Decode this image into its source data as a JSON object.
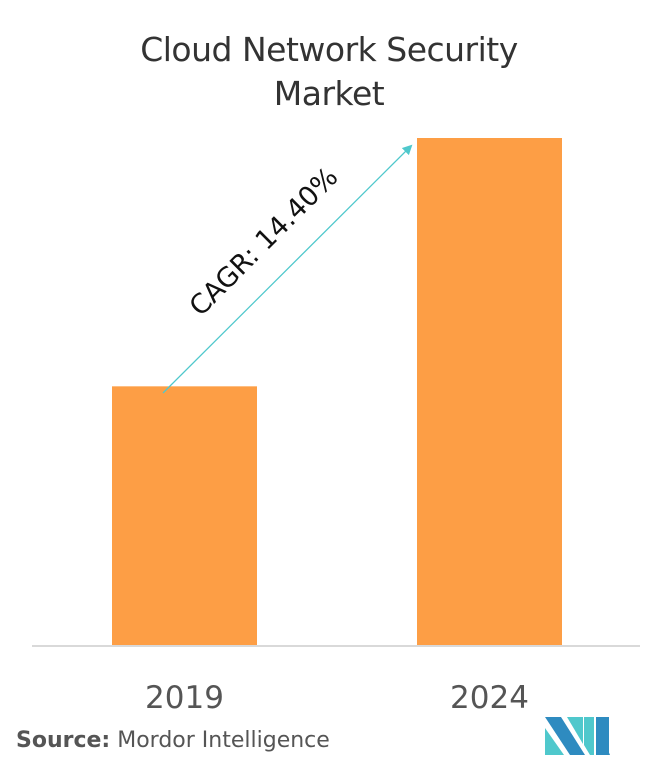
{
  "chart_data": {
    "type": "bar",
    "title": "Cloud Network Security Market",
    "title_lines": [
      "Cloud Network Security",
      "Market"
    ],
    "categories": [
      "2019",
      "2024"
    ],
    "values": [
      1.0,
      1.96
    ],
    "value_units": "relative (no axis shown)",
    "xlabel": "",
    "ylabel": "",
    "ylim": [
      0,
      2.1
    ],
    "grid": false,
    "annotation": "CAGR: 14.40%",
    "bar_color": "#FD9E45",
    "arrow_color": "#4FC8CC"
  },
  "source": {
    "label": "Source:",
    "text": "Mordor Intelligence"
  },
  "logo": {
    "text": "MI"
  }
}
